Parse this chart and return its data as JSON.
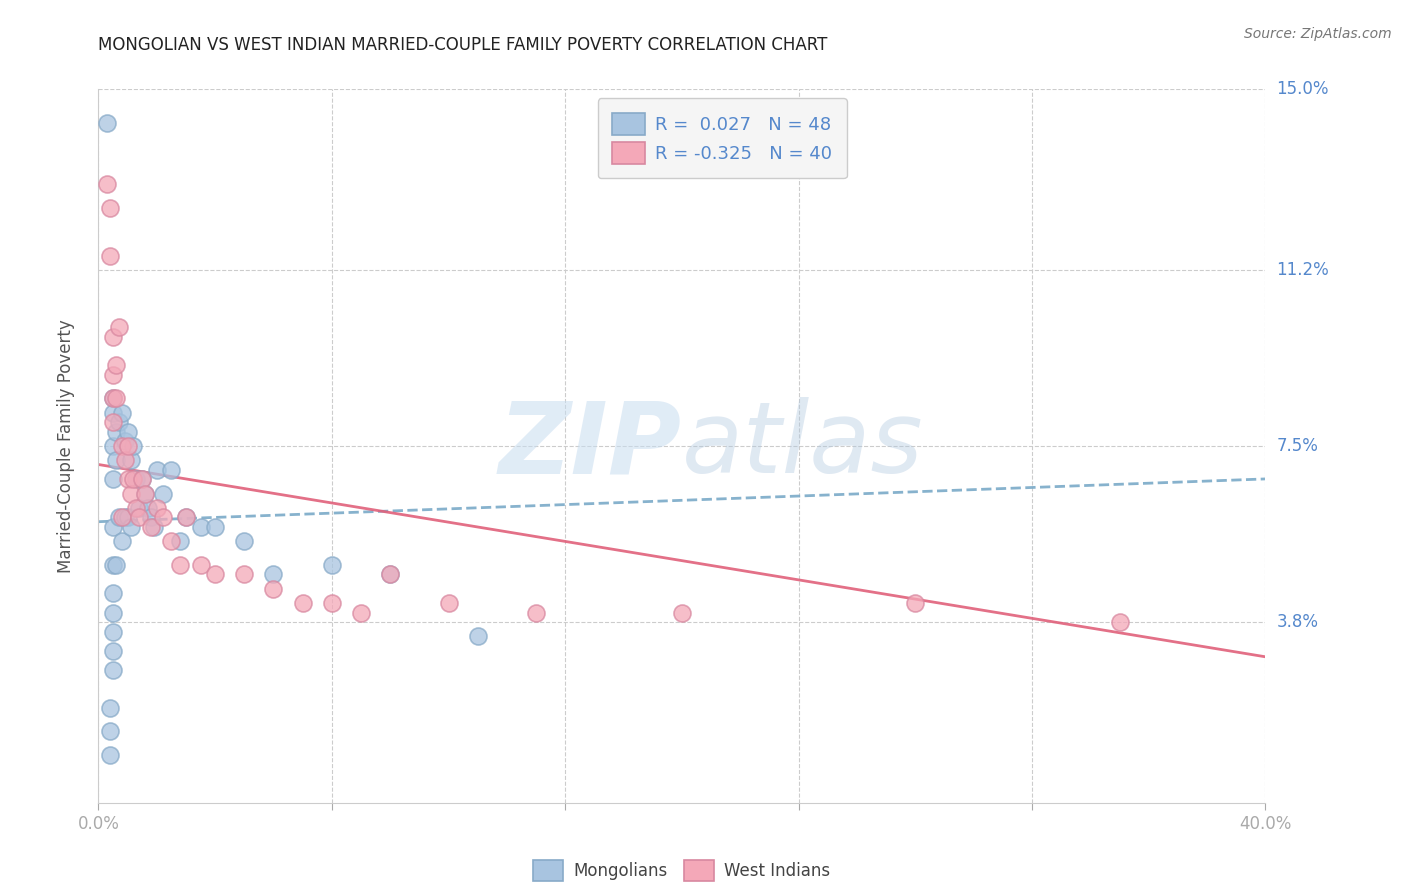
{
  "title": "MONGOLIAN VS WEST INDIAN MARRIED-COUPLE FAMILY POVERTY CORRELATION CHART",
  "source": "Source: ZipAtlas.com",
  "ylabel": "Married-Couple Family Poverty",
  "mongolian_color": "#a8c4e0",
  "west_indian_color": "#f4a8b8",
  "mongolian_R": 0.027,
  "mongolian_N": 48,
  "west_indian_R": -0.325,
  "west_indian_N": 40,
  "background_color": "#ffffff",
  "grid_color": "#cccccc",
  "trend_mongolian_color": "#7aaac8",
  "trend_west_indian_color": "#e0607a",
  "watermark_zip": "ZIP",
  "watermark_atlas": "atlas",
  "xlim": [
    0.0,
    0.4
  ],
  "ylim": [
    0.0,
    0.15
  ],
  "ytick_vals": [
    0.038,
    0.075,
    0.112,
    0.15
  ],
  "ytick_labels": [
    "3.8%",
    "7.5%",
    "11.2%",
    "15.0%"
  ],
  "xtick_vals": [
    0.0,
    0.08,
    0.16,
    0.24,
    0.32,
    0.4
  ],
  "mongolian_x": [
    0.003,
    0.004,
    0.004,
    0.004,
    0.005,
    0.005,
    0.005,
    0.005,
    0.005,
    0.005,
    0.005,
    0.005,
    0.005,
    0.005,
    0.005,
    0.006,
    0.006,
    0.006,
    0.007,
    0.007,
    0.008,
    0.008,
    0.009,
    0.009,
    0.01,
    0.01,
    0.011,
    0.011,
    0.012,
    0.013,
    0.014,
    0.015,
    0.016,
    0.017,
    0.018,
    0.019,
    0.02,
    0.022,
    0.025,
    0.028,
    0.03,
    0.035,
    0.04,
    0.05,
    0.06,
    0.08,
    0.1,
    0.13
  ],
  "mongolian_y": [
    0.143,
    0.02,
    0.015,
    0.01,
    0.085,
    0.082,
    0.075,
    0.068,
    0.058,
    0.05,
    0.044,
    0.04,
    0.036,
    0.032,
    0.028,
    0.078,
    0.072,
    0.05,
    0.08,
    0.06,
    0.082,
    0.055,
    0.076,
    0.06,
    0.078,
    0.06,
    0.072,
    0.058,
    0.075,
    0.068,
    0.062,
    0.068,
    0.065,
    0.062,
    0.06,
    0.058,
    0.07,
    0.065,
    0.07,
    0.055,
    0.06,
    0.058,
    0.058,
    0.055,
    0.048,
    0.05,
    0.048,
    0.035
  ],
  "west_indian_x": [
    0.003,
    0.004,
    0.004,
    0.005,
    0.005,
    0.005,
    0.005,
    0.006,
    0.006,
    0.007,
    0.008,
    0.008,
    0.009,
    0.01,
    0.01,
    0.011,
    0.012,
    0.013,
    0.014,
    0.015,
    0.016,
    0.018,
    0.02,
    0.022,
    0.025,
    0.028,
    0.03,
    0.035,
    0.04,
    0.05,
    0.06,
    0.07,
    0.08,
    0.09,
    0.1,
    0.12,
    0.15,
    0.2,
    0.28,
    0.35
  ],
  "west_indian_y": [
    0.13,
    0.125,
    0.115,
    0.098,
    0.09,
    0.085,
    0.08,
    0.092,
    0.085,
    0.1,
    0.075,
    0.06,
    0.072,
    0.075,
    0.068,
    0.065,
    0.068,
    0.062,
    0.06,
    0.068,
    0.065,
    0.058,
    0.062,
    0.06,
    0.055,
    0.05,
    0.06,
    0.05,
    0.048,
    0.048,
    0.045,
    0.042,
    0.042,
    0.04,
    0.048,
    0.042,
    0.04,
    0.04,
    0.042,
    0.038
  ]
}
